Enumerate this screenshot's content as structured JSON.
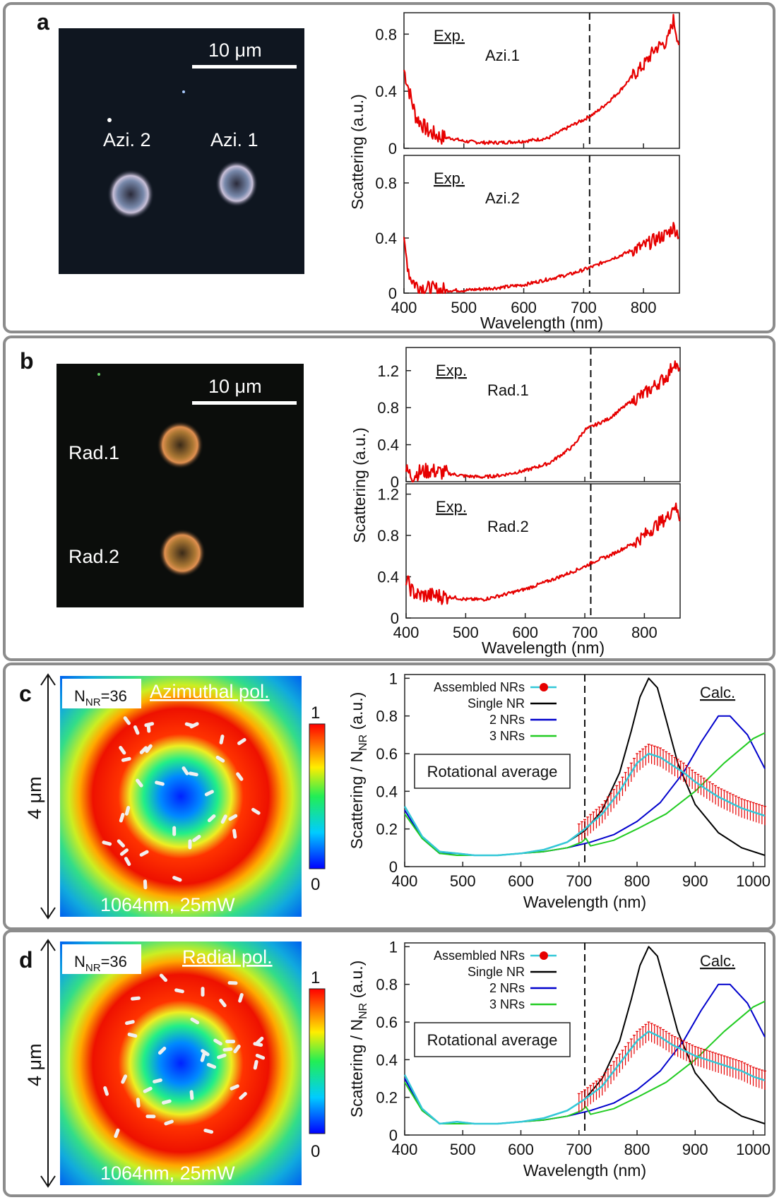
{
  "panels": [
    {
      "label": "a",
      "scalebar": "10 μm",
      "spots": [
        "Azi. 2",
        "Azi. 1"
      ]
    },
    {
      "label": "b",
      "scalebar": "10 μm",
      "spots": [
        "Rad.1",
        "Rad.2"
      ]
    },
    {
      "label": "c",
      "nnr": "N<sub>NR</sub>=36",
      "nnr_text": "NNR=36",
      "pol": "Azimuthal  pol.",
      "laser": "1064nm, 25mW",
      "size": "4 μm",
      "cbar_max": "1",
      "cbar_min": "0"
    },
    {
      "label": "d",
      "nnr_text": "NNR=36",
      "pol": "Radial  pol.",
      "laser": "1064nm, 25mW",
      "size": "4 μm",
      "cbar_max": "1",
      "cbar_min": "0"
    }
  ],
  "chart_data": [
    {
      "id": "a-top",
      "type": "line",
      "panel": "a",
      "title": "",
      "xlabel": "Wavelength (nm)",
      "ylabel": "Scattering (a.u.)",
      "xlim": [
        400,
        860
      ],
      "ylim": [
        0,
        0.95
      ],
      "xticks": [
        400,
        500,
        600,
        700,
        800
      ],
      "yticks": [
        "0",
        "0.4",
        "0.8"
      ],
      "annotations": [
        "Exp.",
        "Azi.1"
      ],
      "marker_x": 710,
      "series": [
        {
          "color": "#e60000",
          "x": [
            400,
            410,
            420,
            440,
            460,
            480,
            500,
            530,
            560,
            600,
            640,
            680,
            700,
            720,
            740,
            760,
            780,
            800,
            820,
            840,
            850,
            860
          ],
          "y": [
            0.55,
            0.38,
            0.22,
            0.12,
            0.08,
            0.07,
            0.05,
            0.04,
            0.04,
            0.05,
            0.07,
            0.16,
            0.2,
            0.25,
            0.32,
            0.4,
            0.5,
            0.58,
            0.7,
            0.75,
            0.9,
            0.72
          ]
        }
      ]
    },
    {
      "id": "a-bottom",
      "type": "line",
      "panel": "a",
      "xlabel": "Wavelength (nm)",
      "ylabel": "Scattering (a.u.)",
      "xlim": [
        400,
        860
      ],
      "ylim": [
        0,
        1.0
      ],
      "xticks": [
        400,
        500,
        600,
        700,
        800
      ],
      "yticks": [
        "0",
        "0.4",
        "0.8"
      ],
      "annotations": [
        "Exp.",
        "Azi.2"
      ],
      "marker_x": 710,
      "series": [
        {
          "color": "#e60000",
          "x": [
            400,
            410,
            420,
            440,
            460,
            480,
            500,
            530,
            560,
            600,
            640,
            680,
            700,
            720,
            740,
            760,
            780,
            800,
            820,
            840,
            850,
            860
          ],
          "y": [
            0.35,
            0.12,
            0.06,
            0.03,
            0.02,
            0.02,
            0.02,
            0.03,
            0.04,
            0.06,
            0.1,
            0.14,
            0.17,
            0.2,
            0.24,
            0.27,
            0.31,
            0.34,
            0.39,
            0.43,
            0.48,
            0.42
          ]
        }
      ]
    },
    {
      "id": "b-top",
      "type": "line",
      "panel": "b",
      "xlabel": "Wavelength (nm)",
      "ylabel": "Scattering (a.u.)",
      "xlim": [
        400,
        860
      ],
      "ylim": [
        0,
        1.45
      ],
      "xticks": [
        400,
        500,
        600,
        700,
        800
      ],
      "yticks": [
        "0",
        "0.4",
        "0.8",
        "1.2"
      ],
      "annotations": [
        "Exp.",
        "Rad.1"
      ],
      "marker_x": 710,
      "series": [
        {
          "color": "#e60000",
          "x": [
            400,
            410,
            420,
            440,
            460,
            480,
            500,
            530,
            560,
            600,
            640,
            680,
            700,
            720,
            740,
            760,
            780,
            800,
            820,
            840,
            850,
            860
          ],
          "y": [
            0.12,
            0.06,
            0.1,
            0.12,
            0.1,
            0.08,
            0.06,
            0.05,
            0.07,
            0.12,
            0.2,
            0.38,
            0.56,
            0.62,
            0.68,
            0.78,
            0.88,
            0.95,
            1.05,
            1.15,
            1.3,
            1.15
          ]
        }
      ]
    },
    {
      "id": "b-bottom",
      "type": "line",
      "panel": "b",
      "xlabel": "Wavelength (nm)",
      "ylabel": "Scattering (a.u.)",
      "xlim": [
        400,
        860
      ],
      "ylim": [
        0,
        1.3
      ],
      "xticks": [
        400,
        500,
        600,
        700,
        800
      ],
      "yticks": [
        "0",
        "0.4",
        "0.8",
        "1.2"
      ],
      "annotations": [
        "Exp.",
        "Rad.2"
      ],
      "marker_x": 710,
      "series": [
        {
          "color": "#e60000",
          "x": [
            400,
            410,
            420,
            440,
            460,
            480,
            500,
            530,
            560,
            600,
            640,
            680,
            700,
            720,
            740,
            760,
            780,
            800,
            820,
            840,
            850,
            860
          ],
          "y": [
            0.38,
            0.26,
            0.22,
            0.22,
            0.21,
            0.2,
            0.18,
            0.18,
            0.22,
            0.28,
            0.36,
            0.45,
            0.5,
            0.56,
            0.6,
            0.66,
            0.72,
            0.8,
            0.9,
            0.98,
            1.1,
            0.96
          ]
        }
      ]
    },
    {
      "id": "c-calc",
      "type": "line",
      "panel": "c",
      "xlabel": "Wavelength (nm)",
      "ylabel": "Scattering / N_NR (a.u.)",
      "xlim": [
        400,
        1020
      ],
      "ylim": [
        0,
        1.02
      ],
      "xticks": [
        400,
        500,
        600,
        700,
        800,
        900,
        1000
      ],
      "yticks": [
        "0",
        "0.2",
        "0.4",
        "0.6",
        "0.8",
        "1"
      ],
      "annotations": [
        "Calc.",
        "Rotational average"
      ],
      "marker_x": 710,
      "legend": [
        "Assembled NRs",
        "Single NR",
        "2 NRs",
        "3 NRs"
      ],
      "legend_position": "top-left",
      "series": [
        {
          "name": "Single NR",
          "color": "#000000",
          "x": [
            400,
            430,
            460,
            490,
            520,
            560,
            600,
            640,
            680,
            710,
            740,
            770,
            790,
            805,
            820,
            835,
            850,
            870,
            900,
            940,
            980,
            1020
          ],
          "y": [
            0.32,
            0.16,
            0.08,
            0.07,
            0.06,
            0.06,
            0.07,
            0.09,
            0.13,
            0.19,
            0.3,
            0.5,
            0.72,
            0.9,
            1.0,
            0.95,
            0.78,
            0.55,
            0.33,
            0.18,
            0.1,
            0.06
          ]
        },
        {
          "name": "2 NRs",
          "color": "#0000cc",
          "x": [
            400,
            430,
            460,
            490,
            520,
            560,
            600,
            640,
            680,
            720,
            760,
            800,
            840,
            880,
            910,
            940,
            960,
            990,
            1020
          ],
          "y": [
            0.3,
            0.15,
            0.07,
            0.07,
            0.06,
            0.06,
            0.07,
            0.08,
            0.1,
            0.13,
            0.17,
            0.24,
            0.34,
            0.5,
            0.66,
            0.8,
            0.8,
            0.7,
            0.52
          ]
        },
        {
          "name": "3 NRs",
          "color": "#22cc22",
          "x": [
            400,
            430,
            460,
            490,
            520,
            560,
            600,
            640,
            680,
            705,
            712,
            720,
            760,
            800,
            850,
            900,
            950,
            1000,
            1020
          ],
          "y": [
            0.28,
            0.15,
            0.07,
            0.06,
            0.06,
            0.06,
            0.07,
            0.08,
            0.1,
            0.13,
            0.15,
            0.11,
            0.14,
            0.2,
            0.28,
            0.4,
            0.55,
            0.68,
            0.71
          ]
        },
        {
          "name": "Assembled NRs",
          "color": "#33c8d8",
          "errcolor": "#e60000",
          "error": 0.05,
          "x": [
            400,
            430,
            460,
            490,
            520,
            560,
            600,
            640,
            680,
            710,
            740,
            770,
            800,
            820,
            840,
            860,
            880,
            900,
            920,
            940,
            960,
            980,
            1000,
            1020
          ],
          "y": [
            0.32,
            0.16,
            0.08,
            0.07,
            0.06,
            0.06,
            0.07,
            0.09,
            0.13,
            0.2,
            0.28,
            0.4,
            0.55,
            0.6,
            0.58,
            0.54,
            0.5,
            0.45,
            0.41,
            0.37,
            0.34,
            0.31,
            0.29,
            0.27
          ]
        }
      ]
    },
    {
      "id": "d-calc",
      "type": "line",
      "panel": "d",
      "xlabel": "Wavelength (nm)",
      "ylabel": "Scattering / N_NR (a.u.)",
      "xlim": [
        400,
        1020
      ],
      "ylim": [
        0,
        1.02
      ],
      "xticks": [
        400,
        500,
        600,
        700,
        800,
        900,
        1000
      ],
      "yticks": [
        "0",
        "0.2",
        "0.4",
        "0.6",
        "0.8",
        "1"
      ],
      "annotations": [
        "Calc.",
        "Rotational average"
      ],
      "marker_x": 710,
      "legend": [
        "Assembled NRs",
        "Single NR",
        "2 NRs",
        "3 NRs"
      ],
      "legend_position": "top-left",
      "series": [
        {
          "name": "Single NR",
          "color": "#000000",
          "x": [
            400,
            430,
            460,
            490,
            520,
            560,
            600,
            640,
            680,
            710,
            740,
            770,
            790,
            805,
            820,
            835,
            850,
            870,
            900,
            940,
            980,
            1020
          ],
          "y": [
            0.32,
            0.14,
            0.06,
            0.07,
            0.06,
            0.06,
            0.07,
            0.09,
            0.13,
            0.19,
            0.3,
            0.5,
            0.72,
            0.9,
            1.0,
            0.95,
            0.78,
            0.55,
            0.33,
            0.18,
            0.1,
            0.06
          ]
        },
        {
          "name": "2 NRs",
          "color": "#0000cc",
          "x": [
            400,
            430,
            460,
            490,
            520,
            560,
            600,
            640,
            680,
            720,
            760,
            800,
            840,
            880,
            910,
            940,
            960,
            990,
            1020
          ],
          "y": [
            0.3,
            0.13,
            0.06,
            0.07,
            0.06,
            0.06,
            0.07,
            0.08,
            0.1,
            0.13,
            0.17,
            0.24,
            0.34,
            0.5,
            0.66,
            0.8,
            0.8,
            0.7,
            0.52
          ]
        },
        {
          "name": "3 NRs",
          "color": "#22cc22",
          "x": [
            400,
            430,
            460,
            490,
            520,
            560,
            600,
            640,
            680,
            705,
            712,
            720,
            760,
            800,
            850,
            900,
            950,
            1000,
            1020
          ],
          "y": [
            0.28,
            0.13,
            0.06,
            0.06,
            0.06,
            0.06,
            0.07,
            0.08,
            0.1,
            0.13,
            0.15,
            0.11,
            0.14,
            0.2,
            0.28,
            0.4,
            0.55,
            0.68,
            0.71
          ]
        },
        {
          "name": "Assembled NRs",
          "color": "#33c8d8",
          "errcolor": "#e60000",
          "error": 0.05,
          "x": [
            400,
            430,
            460,
            490,
            520,
            560,
            600,
            640,
            680,
            710,
            740,
            770,
            800,
            820,
            840,
            860,
            880,
            900,
            920,
            940,
            960,
            980,
            1000,
            1020
          ],
          "y": [
            0.32,
            0.14,
            0.06,
            0.07,
            0.06,
            0.06,
            0.07,
            0.09,
            0.13,
            0.19,
            0.26,
            0.38,
            0.5,
            0.55,
            0.52,
            0.48,
            0.45,
            0.42,
            0.4,
            0.38,
            0.36,
            0.34,
            0.31,
            0.29
          ]
        }
      ]
    }
  ]
}
